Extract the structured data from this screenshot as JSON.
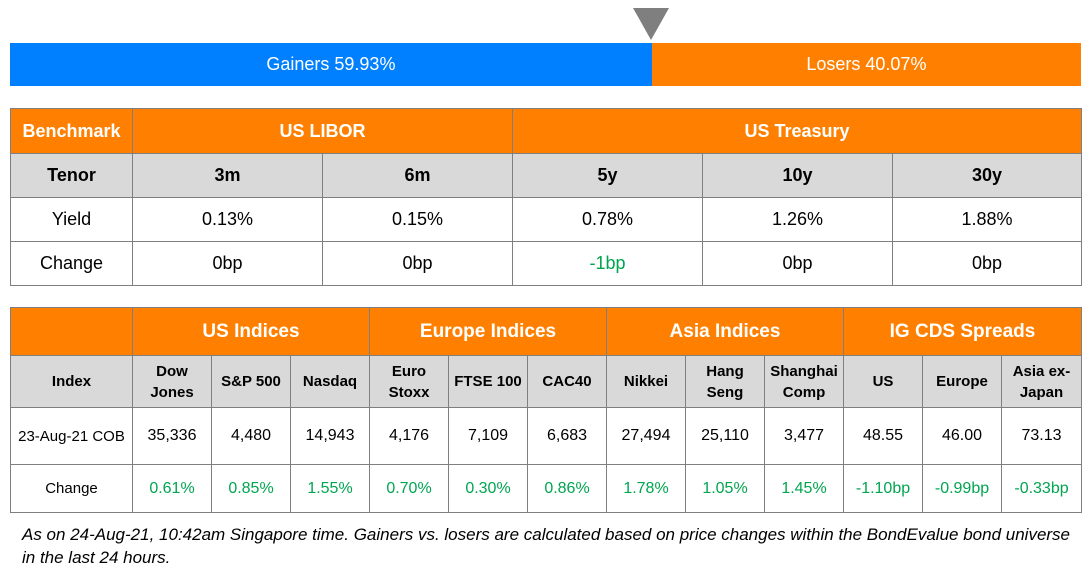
{
  "gainers_losers": {
    "gainers_label": "Gainers 59.93%",
    "losers_label": "Losers 40.07%",
    "gainers_pct": 59.93,
    "losers_pct": 40.07,
    "gainers_color": "#0080ff",
    "losers_color": "#ff8000",
    "pointer_color": "#7f7f7f"
  },
  "benchmark_table": {
    "corner": "Benchmark",
    "group_libor": "US LIBOR",
    "group_treasury": "US Treasury",
    "tenor_label": "Tenor",
    "tenors": [
      "3m",
      "6m",
      "5y",
      "10y",
      "30y"
    ],
    "yield_label": "Yield",
    "yields": [
      "0.13%",
      "0.15%",
      "0.78%",
      "1.26%",
      "1.88%"
    ],
    "change_label": "Change",
    "changes": [
      "0bp",
      "0bp",
      "-1bp",
      "0bp",
      "0bp"
    ]
  },
  "indices_table": {
    "corner": "Index",
    "groups": [
      "US Indices",
      "Europe Indices",
      "Asia Indices",
      "IG CDS Spreads"
    ],
    "columns": [
      [
        "Dow",
        "Jones"
      ],
      [
        "S&P 500"
      ],
      [
        "Nasdaq"
      ],
      [
        "Euro",
        "Stoxx"
      ],
      [
        "FTSE 100"
      ],
      [
        "CAC40"
      ],
      [
        "Nikkei"
      ],
      [
        "Hang",
        "Seng"
      ],
      [
        "Shanghai",
        "Comp"
      ],
      [
        "US"
      ],
      [
        "Europe"
      ],
      [
        "Asia ex-",
        "Japan"
      ]
    ],
    "value_label": "23-Aug-21 COB",
    "values": [
      "35,336",
      "4,480",
      "14,943",
      "4,176",
      "7,109",
      "6,683",
      "27,494",
      "25,110",
      "3,477",
      "48.55",
      "46.00",
      "73.13"
    ],
    "change_label": "Change",
    "changes": [
      "0.61%",
      "0.85%",
      "1.55%",
      "0.70%",
      "0.30%",
      "0.86%",
      "1.78%",
      "1.05%",
      "1.45%",
      "-1.10bp",
      "-0.99bp",
      "-0.33bp"
    ]
  },
  "colors": {
    "header_orange": "#ff8000",
    "subheader_gray": "#d9d9d9",
    "positive_green": "#00a550"
  },
  "footnote": "As on 24-Aug-21, 10:42am Singapore time. Gainers vs. losers are calculated based on price changes within the BondEvalue bond universe in the last 24 hours."
}
